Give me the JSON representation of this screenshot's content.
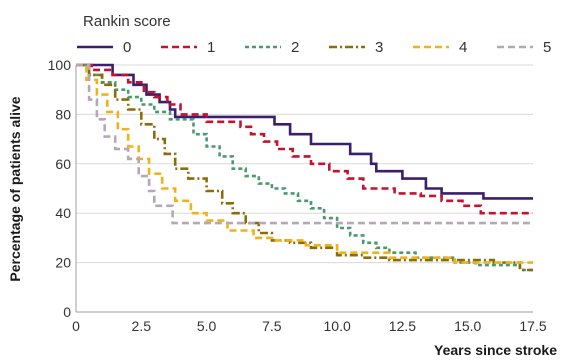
{
  "chart_data": {
    "type": "line",
    "step": true,
    "xlabel": "Years since stroke",
    "ylabel": "Percentage of patients alive",
    "xlim": [
      0,
      17.5
    ],
    "ylim": [
      0,
      100
    ],
    "xticks": [
      0,
      2.5,
      5.0,
      7.5,
      10.0,
      12.5,
      15.0,
      17.5
    ],
    "xtick_labels": [
      "0",
      "2.5",
      "5.0",
      "7.5",
      "10.0",
      "12.5",
      "15.0",
      "17.5"
    ],
    "yticks": [
      0,
      20,
      40,
      60,
      80,
      100
    ],
    "ytick_labels": [
      "0",
      "20",
      "40",
      "60",
      "80",
      "100"
    ],
    "grid": "horizontal",
    "legend": {
      "title": "Rankin score",
      "position": "top"
    },
    "series": [
      {
        "name": "0",
        "color": "#3b1f6e",
        "dash": "solid",
        "x": [
          0,
          1.4,
          2.2,
          2.7,
          3.2,
          3.6,
          3.8,
          7.6,
          8.2,
          9.0,
          10.5,
          11.3,
          11.5,
          12.5,
          13.4,
          14.0,
          15.6,
          17.5
        ],
        "y": [
          100,
          96,
          92,
          88,
          85,
          82,
          79,
          76,
          72,
          68,
          64,
          60,
          57,
          54,
          50,
          48,
          46,
          46
        ]
      },
      {
        "name": "1",
        "color": "#c4122f",
        "dash": "dashed",
        "x": [
          0,
          0.6,
          1.4,
          2.0,
          2.6,
          3.0,
          3.5,
          4.0,
          5.0,
          6.3,
          6.7,
          7.2,
          7.7,
          8.3,
          9.0,
          9.7,
          10.4,
          11.0,
          12.2,
          13.2,
          14.0,
          14.8,
          15.5,
          17.5
        ],
        "y": [
          100,
          98,
          96,
          93,
          89,
          87,
          84,
          80,
          77,
          75,
          72,
          69,
          66,
          63,
          60,
          57,
          54,
          50,
          48,
          47,
          45,
          43,
          40,
          40
        ]
      },
      {
        "name": "2",
        "color": "#4a9a6e",
        "dash": "dotted",
        "x": [
          0,
          0.5,
          1.0,
          1.5,
          2.0,
          2.5,
          3.0,
          3.6,
          4.5,
          5.0,
          5.5,
          6.0,
          6.5,
          7.0,
          7.5,
          8.0,
          8.5,
          9.0,
          9.5,
          10.0,
          10.5,
          11.0,
          11.5,
          12.0,
          13.0,
          14.5,
          15.3,
          17.0,
          17.5
        ],
        "y": [
          100,
          96,
          93,
          90,
          87,
          84,
          81,
          78,
          72,
          67,
          63,
          58,
          55,
          52,
          50,
          48,
          45,
          42,
          38,
          34,
          31,
          28,
          26,
          24,
          22,
          20,
          19,
          17,
          17
        ]
      },
      {
        "name": "3",
        "color": "#8a6d0b",
        "dash": "dashdot",
        "x": [
          0,
          0.5,
          1.0,
          1.5,
          2.0,
          2.5,
          3.0,
          3.4,
          3.8,
          4.3,
          5.0,
          5.6,
          6.0,
          6.5,
          7.0,
          7.5,
          8.2,
          9.0,
          10.0,
          11.0,
          12.0,
          14.0,
          16.0,
          17.0,
          17.5
        ],
        "y": [
          100,
          96,
          92,
          86,
          82,
          76,
          70,
          64,
          58,
          54,
          49,
          44,
          40,
          36,
          32,
          29,
          28,
          26,
          23,
          22,
          21,
          21,
          20,
          17,
          17
        ]
      },
      {
        "name": "4",
        "color": "#f0b21b",
        "dash": "dashed",
        "x": [
          0,
          0.4,
          0.8,
          1.2,
          1.6,
          2.0,
          2.4,
          2.8,
          3.3,
          3.8,
          4.4,
          5.0,
          5.8,
          6.8,
          7.6,
          8.8,
          10.0,
          12.0,
          14.5,
          16.5,
          17.5
        ],
        "y": [
          100,
          94,
          88,
          81,
          74,
          67,
          62,
          56,
          50,
          45,
          40,
          37,
          33,
          30,
          29,
          27,
          24,
          22,
          20,
          20,
          20
        ]
      },
      {
        "name": "5",
        "color": "#b7a6b9",
        "dash": "dashed",
        "x": [
          0,
          0.5,
          0.8,
          1.1,
          1.5,
          2.0,
          2.4,
          2.8,
          3.0,
          3.7,
          17.5
        ],
        "y": [
          100,
          86,
          78,
          71,
          66,
          62,
          55,
          49,
          43,
          36,
          36
        ]
      }
    ]
  }
}
